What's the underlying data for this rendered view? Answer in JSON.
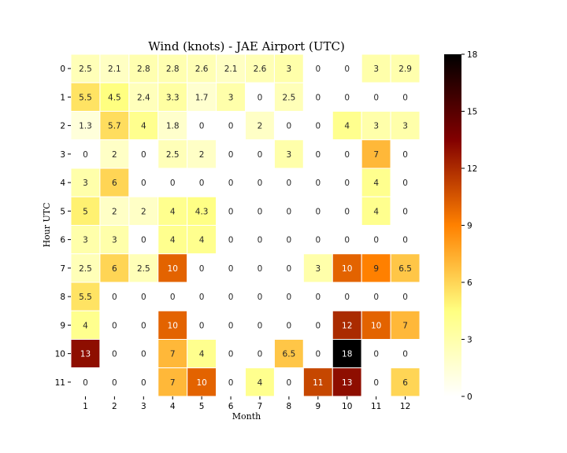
{
  "chart_data": {
    "type": "heatmap",
    "title": "Wind (knots) - JAE Airport (UTC)",
    "xlabel": "Month",
    "ylabel": "Hour UTC",
    "x": [
      "1",
      "2",
      "3",
      "4",
      "5",
      "6",
      "7",
      "8",
      "9",
      "10",
      "11",
      "12"
    ],
    "y": [
      "0",
      "1",
      "2",
      "3",
      "4",
      "5",
      "6",
      "7",
      "8",
      "9",
      "10",
      "11"
    ],
    "values": [
      [
        2.5,
        2.1,
        2.8,
        2.8,
        2.6,
        2.1,
        2.6,
        3,
        0,
        0,
        3,
        2.9
      ],
      [
        5.5,
        4.5,
        2.4,
        3.3,
        1.7,
        3,
        0,
        2.5,
        0,
        0,
        0,
        0
      ],
      [
        1.3,
        5.7,
        4,
        1.8,
        0,
        0,
        2,
        0,
        0,
        4,
        3,
        3
      ],
      [
        0,
        2,
        0,
        2.5,
        2,
        0,
        0,
        3,
        0,
        0,
        7,
        0
      ],
      [
        3,
        6,
        0,
        0,
        0,
        0,
        0,
        0,
        0,
        0,
        4,
        0
      ],
      [
        5,
        2,
        2,
        4,
        4.3,
        0,
        0,
        0,
        0,
        0,
        4,
        0
      ],
      [
        3,
        3,
        0,
        4,
        4,
        0,
        0,
        0,
        0,
        0,
        0,
        0
      ],
      [
        2.5,
        6,
        2.5,
        10,
        0,
        0,
        0,
        0,
        3,
        10,
        9,
        6.5
      ],
      [
        5.5,
        0,
        0,
        0,
        0,
        0,
        0,
        0,
        0,
        0,
        0,
        0
      ],
      [
        4,
        0,
        0,
        10,
        0,
        0,
        0,
        0,
        0,
        12,
        10,
        7
      ],
      [
        13,
        0,
        0,
        7,
        4,
        0,
        0,
        6.5,
        0,
        18,
        0,
        0
      ],
      [
        0,
        0,
        0,
        7,
        10,
        0,
        4,
        0,
        11,
        13,
        0,
        6
      ]
    ],
    "colorbar": {
      "colormap": "afmhot_r",
      "vmin": 0,
      "vmax": 18,
      "ticks": [
        "0",
        "3",
        "6",
        "9",
        "12",
        "15",
        "18"
      ]
    },
    "cell_labels": "annotated",
    "cell_border_color": "#ffffff"
  }
}
